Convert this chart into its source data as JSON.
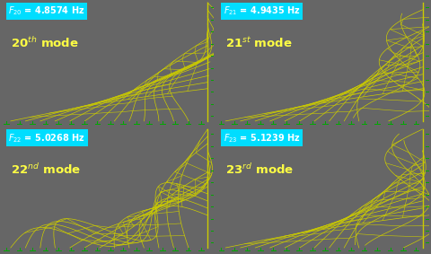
{
  "panels": [
    {
      "mode_num": 20,
      "sup": "th",
      "freq": "4.8574"
    },
    {
      "mode_num": 21,
      "sup": "st",
      "freq": "4.9435"
    },
    {
      "mode_num": 22,
      "sup": "nd",
      "freq": "5.0268"
    },
    {
      "mode_num": 23,
      "sup": "rd",
      "freq": "5.1239"
    }
  ],
  "bg_color": "#000000",
  "cable_color": "#cccc00",
  "freq_box_color": "#00ddff",
  "freq_text_color": "#ffffff",
  "mode_text_color": "#ffff44",
  "support_color": "#00aa00",
  "figure_bg": "#666666",
  "n_stay_cables": 13,
  "n_crossties": 9
}
